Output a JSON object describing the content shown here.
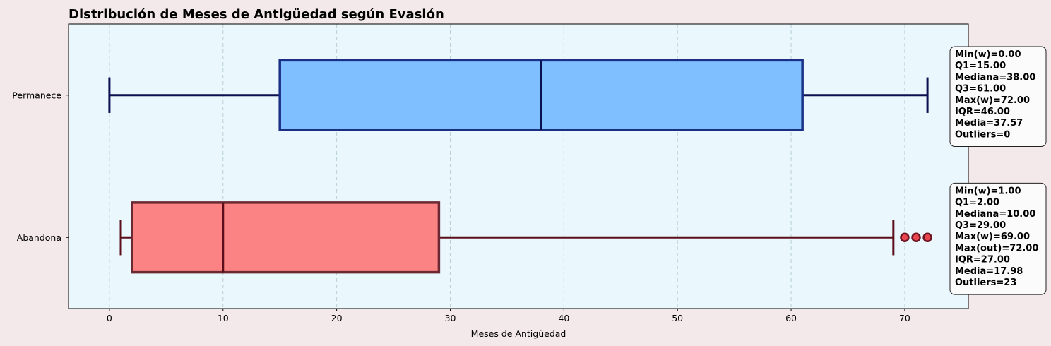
{
  "chart_data": {
    "type": "boxplot",
    "title": "Distribución de Meses de Antigüedad según Evasión",
    "xlabel": "Meses de Antigüedad",
    "ylabel": "",
    "xlim": [
      -3.6,
      75.6
    ],
    "xticks": [
      0,
      10,
      20,
      30,
      40,
      50,
      60,
      70
    ],
    "grid": "vertical dashed",
    "orientation": "horizontal",
    "series": [
      {
        "name": "Permanece",
        "min_w": 0,
        "q1": 15,
        "median": 38,
        "q3": 61,
        "max_w": 72,
        "mean": 37.57,
        "outliers": [],
        "fill": "#7fbfff",
        "edge": "#1a2f85",
        "line": "#0a1050",
        "stats": [
          "Min(w)=0.00",
          "Q1=15.00",
          "Mediana=38.00",
          "Q3=61.00",
          "Max(w)=72.00",
          "IQR=46.00",
          "Media=37.57",
          "Outliers=0"
        ]
      },
      {
        "name": "Abandona",
        "min_w": 1,
        "q1": 2,
        "median": 10,
        "q3": 29,
        "max_w": 69,
        "mean": 17.98,
        "outliers": [
          70,
          71,
          72
        ],
        "fill": "#fc8383",
        "edge": "#6b2a33",
        "line": "#5c0f1a",
        "stats": [
          "Min(w)=1.00",
          "Q1=2.00",
          "Mediana=10.00",
          "Q3=29.00",
          "Max(w)=69.00",
          "Max(out)=72.00",
          "IQR=27.00",
          "Media=17.98",
          "Outliers=23"
        ]
      }
    ]
  },
  "colors": {
    "page_bg": "#f3e8ea",
    "plot_bg": "#eaf7fd",
    "grid": "#b9cfd6"
  }
}
